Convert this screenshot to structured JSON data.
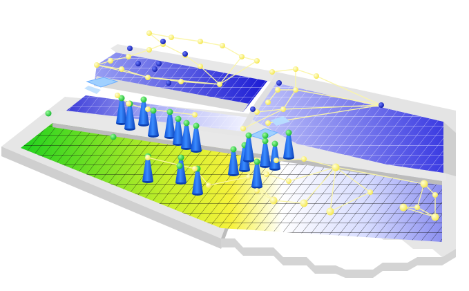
{
  "scene": {
    "description_visible_text": "",
    "colors": {
      "background": "#ffffff",
      "wall": "#e4e4e4",
      "wall_shadow": "#b9b9b9",
      "floor_blue": "#5a5ae6",
      "floor_deep_blue": "#2020d8",
      "floor_light": "#e9ecff",
      "floor_green": "#21d321",
      "floor_yellow": "#f2f23a",
      "grid_line": "#111111",
      "link_line": "#f7f3a0",
      "node_yellow": "#fff36a",
      "node_blue": "#1a2ad8",
      "cone_blue": "#1f6cf0",
      "cone_head_green": "#1fcf3a",
      "arrow_light_blue": "#8cc6ff"
    },
    "legend": []
  }
}
